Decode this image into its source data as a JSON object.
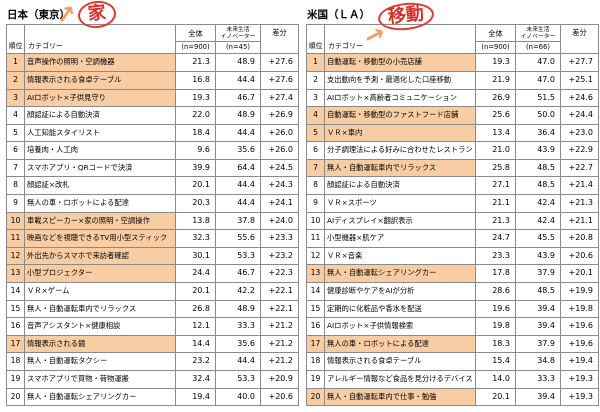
{
  "icons": {
    "arrow": "↗"
  },
  "left": {
    "title": "日本（東京）",
    "annotation": "家",
    "header": {
      "rank": "順位",
      "category": "カテゴリー",
      "overall": "全体",
      "innovator_line1": "未来生活",
      "innovator_line2": "イノベーター",
      "diff": "差分",
      "overall_n": "(n=900)",
      "innovator_n": "(n=45)"
    },
    "rows": [
      {
        "rank": "1",
        "category": "音声操作の照明・空調機器",
        "overall": "21.3",
        "innovator": "48.9",
        "diff": "+27.6",
        "highlight": true
      },
      {
        "rank": "2",
        "category": "情報表示される食卓テーブル",
        "overall": "16.8",
        "innovator": "44.4",
        "diff": "+27.6",
        "highlight": true
      },
      {
        "rank": "3",
        "category": "AIロボット×子供見守り",
        "overall": "19.3",
        "innovator": "46.7",
        "diff": "+27.4",
        "highlight": true
      },
      {
        "rank": "4",
        "category": "顔認証による自動決済",
        "overall": "22.0",
        "innovator": "48.9",
        "diff": "+26.9",
        "highlight": false
      },
      {
        "rank": "5",
        "category": "人工知能スタイリスト",
        "overall": "18.4",
        "innovator": "44.4",
        "diff": "+26.0",
        "highlight": false
      },
      {
        "rank": "6",
        "category": "培養肉・人工肉",
        "overall": "9.6",
        "innovator": "35.6",
        "diff": "+26.0",
        "highlight": false
      },
      {
        "rank": "7",
        "category": "スマホアプリ・QRコードで決済",
        "overall": "39.9",
        "innovator": "64.4",
        "diff": "+24.5",
        "highlight": false
      },
      {
        "rank": "8",
        "category": "顔認証×改札",
        "overall": "20.1",
        "innovator": "44.4",
        "diff": "+24.3",
        "highlight": false
      },
      {
        "rank": "9",
        "category": "無人の車・ロボットによる配達",
        "overall": "20.3",
        "innovator": "44.4",
        "diff": "+24.1",
        "highlight": false
      },
      {
        "rank": "10",
        "category": "車載スピーカー×家の照明・空調操作",
        "overall": "13.8",
        "innovator": "37.8",
        "diff": "+24.0",
        "highlight": true
      },
      {
        "rank": "11",
        "category": "映画などを視聴できるTV用小型スティック",
        "overall": "32.3",
        "innovator": "55.6",
        "diff": "+23.3",
        "highlight": true
      },
      {
        "rank": "12",
        "category": "外出先からスマホで来訪者確認",
        "overall": "30.1",
        "innovator": "53.3",
        "diff": "+23.2",
        "highlight": true
      },
      {
        "rank": "13",
        "category": "小型プロジェクター",
        "overall": "24.4",
        "innovator": "46.7",
        "diff": "+22.3",
        "highlight": true
      },
      {
        "rank": "14",
        "category": "ＶＲ×ゲーム",
        "overall": "20.1",
        "innovator": "42.2",
        "diff": "+22.1",
        "highlight": false
      },
      {
        "rank": "15",
        "category": "無人・自動運転車内でリラックス",
        "overall": "26.8",
        "innovator": "48.9",
        "diff": "+22.1",
        "highlight": false
      },
      {
        "rank": "16",
        "category": "音声アシスタント×健康相談",
        "overall": "12.1",
        "innovator": "33.3",
        "diff": "+21.2",
        "highlight": false
      },
      {
        "rank": "17",
        "category": "情報表示される鏡",
        "overall": "14.4",
        "innovator": "35.6",
        "diff": "+21.2",
        "highlight": true
      },
      {
        "rank": "18",
        "category": "無人・自動運転タクシー",
        "overall": "23.2",
        "innovator": "44.4",
        "diff": "+21.2",
        "highlight": false
      },
      {
        "rank": "19",
        "category": "スマホアプリで買物・荷物運搬",
        "overall": "32.4",
        "innovator": "53.3",
        "diff": "+20.9",
        "highlight": false
      },
      {
        "rank": "20",
        "category": "無人・自動運転シェアリングカー",
        "overall": "19.4",
        "innovator": "40.0",
        "diff": "+20.6",
        "highlight": false
      }
    ]
  },
  "right": {
    "title": "米国（ＬＡ）",
    "annotation": "移動",
    "header": {
      "rank": "順位",
      "category": "カテゴリー",
      "overall": "全体",
      "innovator_line1": "未来生活",
      "innovator_line2": "イノベーター",
      "diff": "差分",
      "overall_n": "(n=900)",
      "innovator_n": "(n=66)"
    },
    "rows": [
      {
        "rank": "1",
        "category": "自動運転・移動型の小売店舗",
        "overall": "19.3",
        "innovator": "47.0",
        "diff": "+27.7",
        "highlight": true
      },
      {
        "rank": "2",
        "category": "支出動向を予測・最適化した口座移動",
        "overall": "21.9",
        "innovator": "47.0",
        "diff": "+25.1",
        "highlight": false
      },
      {
        "rank": "3",
        "category": "AIロボット×高齢者コミュニケーション",
        "overall": "26.9",
        "innovator": "51.5",
        "diff": "+24.6",
        "highlight": false
      },
      {
        "rank": "4",
        "category": "自動運転・移動型のファストフード店舗",
        "overall": "25.6",
        "innovator": "50.0",
        "diff": "+24.4",
        "highlight": true
      },
      {
        "rank": "5",
        "category": "ＶＲ×車内",
        "overall": "13.4",
        "innovator": "36.4",
        "diff": "+23.0",
        "highlight": true
      },
      {
        "rank": "6",
        "category": "分子調理法による好みに合わせたレストラン",
        "overall": "21.0",
        "innovator": "43.9",
        "diff": "+22.9",
        "highlight": false
      },
      {
        "rank": "7",
        "category": "無人・自動運転車内でリラックス",
        "overall": "25.8",
        "innovator": "48.5",
        "diff": "+22.7",
        "highlight": true
      },
      {
        "rank": "8",
        "category": "顔認証による自動決済",
        "overall": "27.1",
        "innovator": "48.5",
        "diff": "+21.4",
        "highlight": false
      },
      {
        "rank": "9",
        "category": "ＶＲ×スポーツ",
        "overall": "21.1",
        "innovator": "42.4",
        "diff": "+21.3",
        "highlight": false
      },
      {
        "rank": "10",
        "category": "AIディスプレイ×翻訳表示",
        "overall": "21.3",
        "innovator": "42.4",
        "diff": "+21.1",
        "highlight": false
      },
      {
        "rank": "11",
        "category": "小型機器×肌ケア",
        "overall": "24.7",
        "innovator": "45.5",
        "diff": "+20.8",
        "highlight": false
      },
      {
        "rank": "12",
        "category": "ＶＲ×音楽",
        "overall": "23.3",
        "innovator": "43.9",
        "diff": "+20.6",
        "highlight": false
      },
      {
        "rank": "13",
        "category": "無人・自動運転シェアリングカー",
        "overall": "17.8",
        "innovator": "37.9",
        "diff": "+20.1",
        "highlight": true
      },
      {
        "rank": "14",
        "category": "健康診断やケアをAIが分析",
        "overall": "28.6",
        "innovator": "48.5",
        "diff": "+19.9",
        "highlight": false
      },
      {
        "rank": "15",
        "category": "定期的に化粧品や香水を配送",
        "overall": "19.6",
        "innovator": "39.4",
        "diff": "+19.8",
        "highlight": false
      },
      {
        "rank": "16",
        "category": "AIロボット×子供情報検索",
        "overall": "19.8",
        "innovator": "39.4",
        "diff": "+19.6",
        "highlight": false
      },
      {
        "rank": "17",
        "category": "無人の車・ロボットによる配達",
        "overall": "18.3",
        "innovator": "37.9",
        "diff": "+19.6",
        "highlight": true
      },
      {
        "rank": "18",
        "category": "情報表示される食卓テーブル",
        "overall": "15.4",
        "innovator": "34.8",
        "diff": "+19.4",
        "highlight": false
      },
      {
        "rank": "19",
        "category": "アレルギー情報など食品を見分けるデバイス",
        "overall": "14.0",
        "innovator": "33.3",
        "diff": "+19.3",
        "highlight": false
      },
      {
        "rank": "20",
        "category": "無人・自動運転車内で仕事・勉強",
        "overall": "20.1",
        "innovator": "39.4",
        "diff": "+19.3",
        "highlight": true
      }
    ]
  }
}
